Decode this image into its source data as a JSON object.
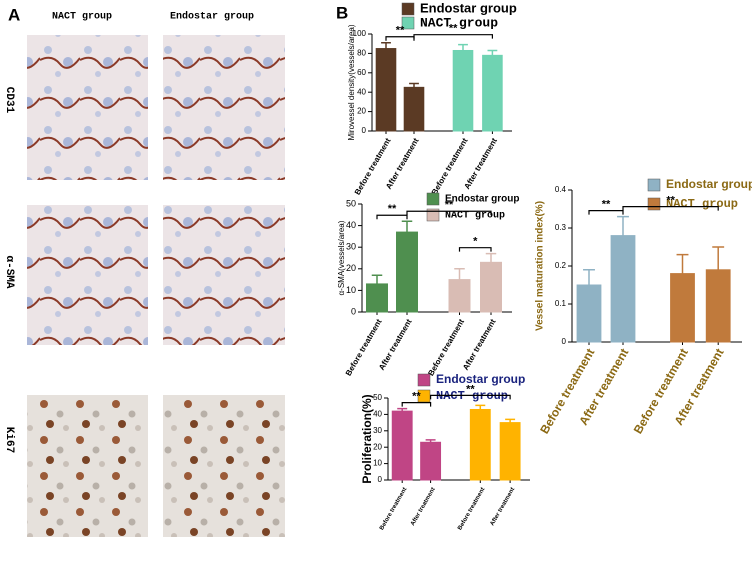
{
  "panel_a": {
    "label": "A",
    "columns": [
      "NACT group",
      "Endostar group"
    ],
    "rows": [
      "CD31",
      "α-SMA",
      "Ki67"
    ]
  },
  "panel_b": {
    "label": "B"
  },
  "chart_data": [
    {
      "type": "bar",
      "ylabel": "Mirovessel density(vessels/area)",
      "categories": [
        "Before treatment",
        "After treatment",
        "Before treatment",
        "After treatment"
      ],
      "series": [
        {
          "name": "Endostar group",
          "color": "#5b3a24",
          "values": [
            85,
            45,
            null,
            null
          ],
          "errors": [
            6,
            4,
            null,
            null
          ]
        },
        {
          "name": "NACT group",
          "color": "#6fd3b2",
          "values": [
            null,
            null,
            83,
            78
          ],
          "errors": [
            null,
            null,
            6,
            5
          ]
        }
      ],
      "ylim": [
        0,
        100
      ],
      "yticks": [
        0,
        20,
        40,
        60,
        80,
        100
      ],
      "annotations": [
        {
          "text": "**",
          "between": [
            0,
            1
          ]
        },
        {
          "text": "**",
          "between": [
            1,
            3
          ]
        }
      ]
    },
    {
      "type": "bar",
      "ylabel": "α-SMA(vessels/area)",
      "categories": [
        "Before treatment",
        "After treatment",
        "Before treatment",
        "After treatment"
      ],
      "series": [
        {
          "name": "Endostar group",
          "color": "#4f8f4f",
          "values": [
            13,
            37,
            null,
            null
          ],
          "errors": [
            4,
            5,
            null,
            null
          ]
        },
        {
          "name": "NACT group",
          "color": "#d9bcb4",
          "values": [
            null,
            null,
            15,
            23
          ],
          "errors": [
            null,
            null,
            5,
            4
          ]
        }
      ],
      "ylim": [
        0,
        50
      ],
      "yticks": [
        0,
        10,
        20,
        30,
        40,
        50
      ],
      "annotations": [
        {
          "text": "**",
          "between": [
            0,
            1
          ]
        },
        {
          "text": "**",
          "between": [
            1,
            3
          ]
        },
        {
          "text": "*",
          "between": [
            2,
            3
          ]
        }
      ]
    },
    {
      "type": "bar",
      "ylabel": "Vessel maturation index(%)",
      "categories": [
        "Before treatment",
        "After treatment",
        "Before treatment",
        "After treatment"
      ],
      "series": [
        {
          "name": "Endostar group",
          "color": "#8fb2c4",
          "values": [
            0.15,
            0.28,
            null,
            null
          ],
          "errors": [
            0.04,
            0.05,
            null,
            null
          ]
        },
        {
          "name": "NACT group",
          "color": "#c07a3c",
          "values": [
            null,
            null,
            0.18,
            0.19
          ],
          "errors": [
            null,
            null,
            0.05,
            0.06
          ]
        }
      ],
      "ylim": [
        0,
        0.4
      ],
      "yticks": [
        0,
        0.1,
        0.2,
        0.3,
        0.4
      ],
      "annotations": [
        {
          "text": "**",
          "between": [
            0,
            1
          ]
        },
        {
          "text": "**",
          "between": [
            1,
            3
          ]
        }
      ]
    },
    {
      "type": "bar",
      "ylabel": "Proliferation(%)",
      "categories": [
        "Before treatment",
        "After treatment",
        "Before treatment",
        "After treatment"
      ],
      "series": [
        {
          "name": "Endostar group",
          "color": "#c04585",
          "values": [
            42,
            23,
            null,
            null
          ],
          "errors": [
            1.5,
            1.5,
            null,
            null
          ]
        },
        {
          "name": "NACT group",
          "color": "#ffb300",
          "values": [
            null,
            null,
            43,
            35
          ],
          "errors": [
            null,
            null,
            2.5,
            2
          ]
        }
      ],
      "ylim": [
        0,
        50
      ],
      "yticks": [
        0,
        10,
        20,
        30,
        40,
        50
      ],
      "annotations": [
        {
          "text": "**",
          "between": [
            0,
            1
          ]
        },
        {
          "text": "**",
          "between": [
            1,
            3
          ]
        }
      ]
    }
  ]
}
